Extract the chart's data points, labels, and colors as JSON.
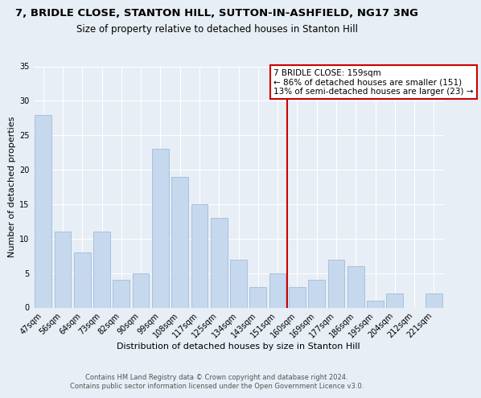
{
  "title1": "7, BRIDLE CLOSE, STANTON HILL, SUTTON-IN-ASHFIELD, NG17 3NG",
  "title2": "Size of property relative to detached houses in Stanton Hill",
  "xlabel": "Distribution of detached houses by size in Stanton Hill",
  "ylabel": "Number of detached properties",
  "categories": [
    "47sqm",
    "56sqm",
    "64sqm",
    "73sqm",
    "82sqm",
    "90sqm",
    "99sqm",
    "108sqm",
    "117sqm",
    "125sqm",
    "134sqm",
    "143sqm",
    "151sqm",
    "160sqm",
    "169sqm",
    "177sqm",
    "186sqm",
    "195sqm",
    "204sqm",
    "212sqm",
    "221sqm"
  ],
  "values": [
    28,
    11,
    8,
    11,
    4,
    5,
    23,
    19,
    15,
    13,
    7,
    3,
    5,
    3,
    4,
    7,
    6,
    1,
    2,
    0,
    2
  ],
  "bar_color": "#c5d8ee",
  "bar_edge_color": "#a0bcd8",
  "bg_color": "#e8eef5",
  "grid_color": "#ffffff",
  "vline_color": "#cc0000",
  "annotation_title": "7 BRIDLE CLOSE: 159sqm",
  "annotation_line1": "← 86% of detached houses are smaller (151)",
  "annotation_line2": "13% of semi-detached houses are larger (23) →",
  "annotation_box_color": "#ffffff",
  "annotation_box_edge": "#cc0000",
  "ylim": [
    0,
    35
  ],
  "yticks": [
    0,
    5,
    10,
    15,
    20,
    25,
    30,
    35
  ],
  "footer1": "Contains HM Land Registry data © Crown copyright and database right 2024.",
  "footer2": "Contains public sector information licensed under the Open Government Licence v3.0.",
  "title1_fontsize": 9.5,
  "title2_fontsize": 8.5,
  "axis_label_fontsize": 8,
  "tick_fontsize": 7,
  "footer_fontsize": 6,
  "annot_fontsize": 7.5
}
